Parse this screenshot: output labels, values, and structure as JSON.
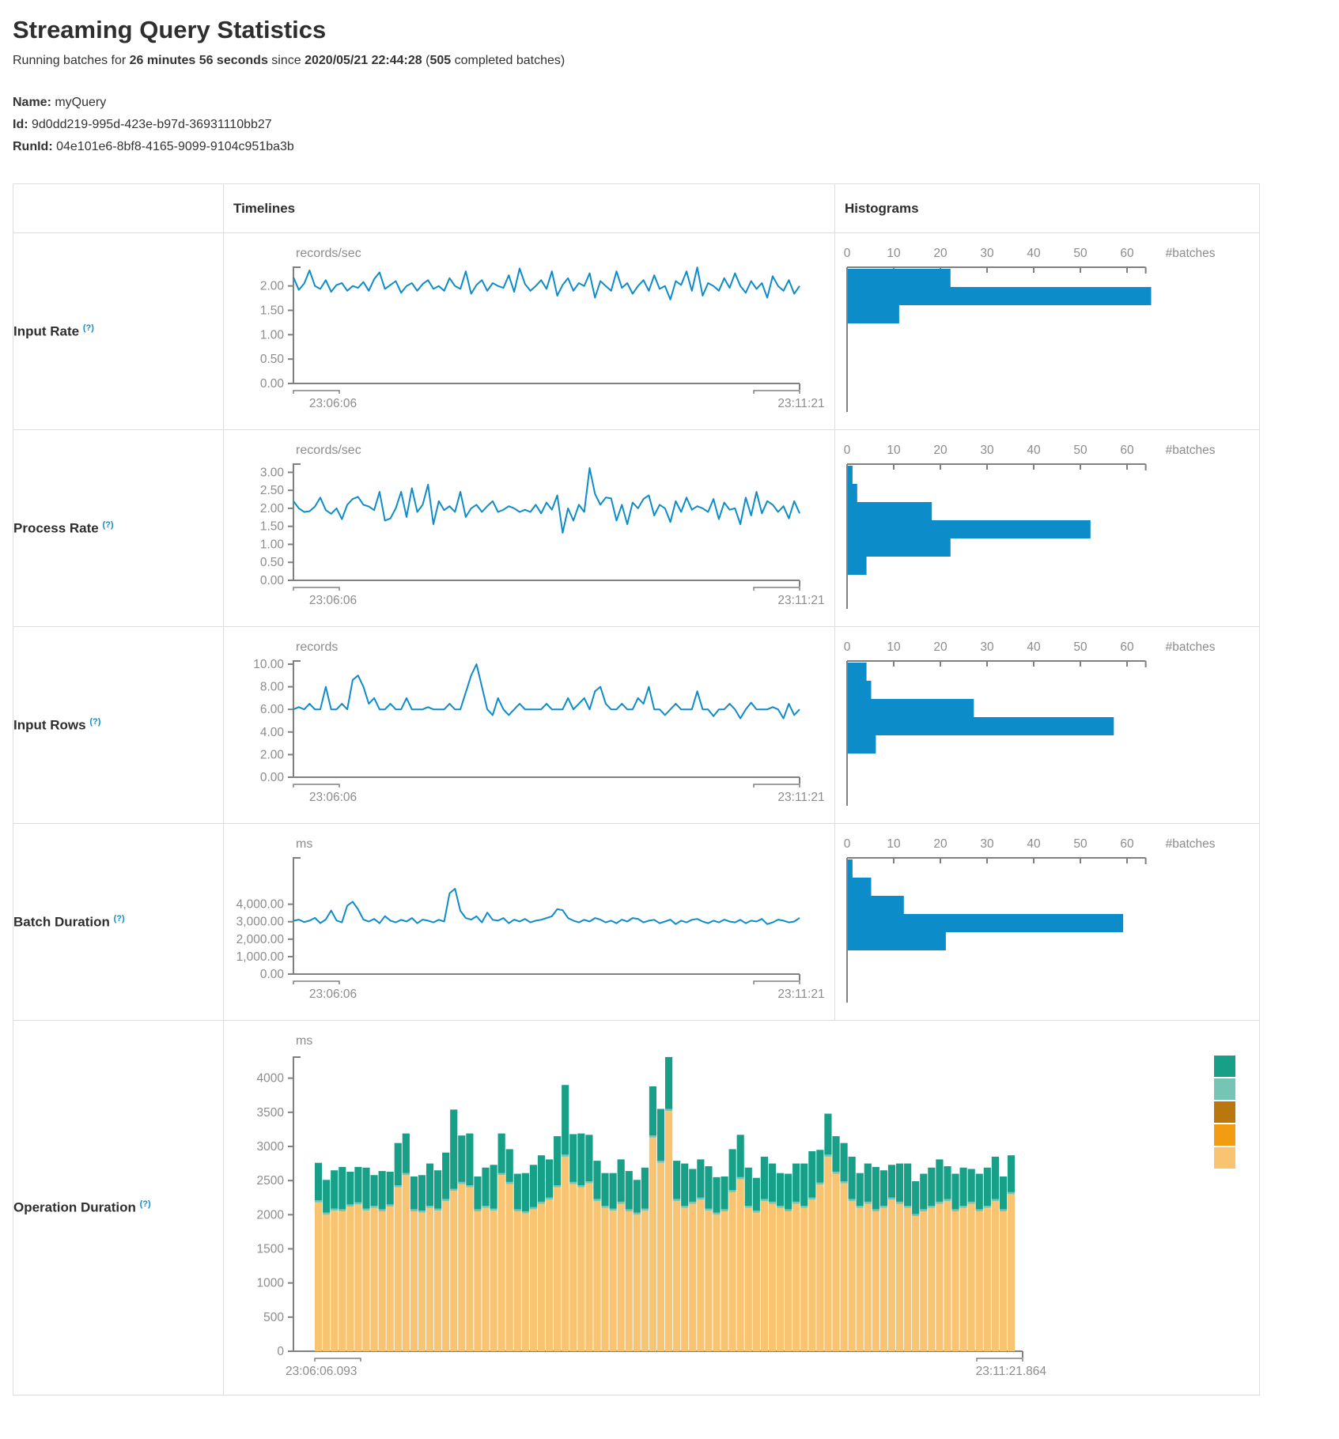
{
  "page": {
    "title": "Streaming Query Statistics",
    "running_prefix": "Running batches for ",
    "running_duration": "26 minutes 56 seconds",
    "running_since": " since ",
    "running_timestamp": "2020/05/21 22:44:28",
    "running_open": " (",
    "running_count": "505",
    "running_suffix": " completed batches)",
    "name_label": "Name:",
    "name_value": " myQuery",
    "id_label": "Id:",
    "id_value": " 9d0dd219-995d-423e-b97d-36931110bb27",
    "runid_label": "RunId:",
    "runid_value": " 04e101e6-8bf8-4165-9099-9104c951ba3b"
  },
  "table": {
    "header_timelines": "Timelines",
    "header_histograms": "Histograms",
    "rows": [
      {
        "label": "Input Rate",
        "help": "(?)"
      },
      {
        "label": "Process Rate",
        "help": "(?)"
      },
      {
        "label": "Input Rows",
        "help": "(?)"
      },
      {
        "label": "Batch Duration",
        "help": "(?)"
      },
      {
        "label": "Operation Duration",
        "help": "(?)"
      }
    ]
  },
  "colors": {
    "blue": "#0d8cca",
    "teal": "#17a087",
    "light_teal": "#76c4b4",
    "ochre": "#b9770e",
    "orange": "#f39c12",
    "tan": "#f8c471",
    "axis": "#808080",
    "tick_text": "#8c8c8c",
    "help": "#0d8cca"
  },
  "chart_data": [
    {
      "id": "input_rate_timeline",
      "type": "line",
      "unit": "records/sec",
      "x_start": "23:06:06",
      "x_end": "23:11:21",
      "ymax": 2.4,
      "grid": false,
      "yticks": [
        {
          "v": 0,
          "t": "0.00"
        },
        {
          "v": 0.5,
          "t": "0.50"
        },
        {
          "v": 1,
          "t": "1.00"
        },
        {
          "v": 1.5,
          "t": "1.50"
        },
        {
          "v": 2,
          "t": "2.00"
        }
      ],
      "values": [
        2.18,
        1.92,
        2.05,
        2.32,
        2.0,
        1.94,
        2.12,
        1.88,
        2.02,
        2.06,
        1.9,
        2.0,
        1.96,
        2.08,
        1.9,
        2.14,
        2.28,
        1.94,
        2.02,
        2.1,
        1.86,
        2.0,
        2.06,
        1.9,
        2.04,
        2.12,
        1.94,
        2.0,
        1.9,
        2.16,
        2.0,
        1.94,
        2.3,
        1.84,
        2.02,
        2.12,
        1.9,
        2.06,
        2.0,
        1.96,
        2.22,
        1.88,
        2.36,
        2.04,
        1.9,
        2.0,
        2.12,
        1.94,
        2.3,
        1.8,
        2.02,
        2.16,
        1.9,
        2.06,
        2.0,
        2.26,
        1.76,
        2.1,
        2.0,
        1.9,
        2.3,
        1.96,
        2.06,
        1.84,
        2.0,
        2.12,
        1.9,
        2.22,
        1.94,
        2.0,
        1.72,
        2.1,
        2.02,
        2.3,
        1.9,
        2.38,
        1.8,
        2.06,
        2.0,
        1.9,
        2.16,
        1.96,
        2.26,
        2.0,
        1.86,
        2.1,
        1.94,
        2.06,
        1.76,
        2.2,
        2.0,
        1.9,
        2.12,
        1.84,
        2.0
      ]
    },
    {
      "id": "input_rate_histogram",
      "type": "hbar",
      "xlabel": "#batches",
      "xticks": [
        0,
        10,
        20,
        30,
        40,
        50,
        60
      ],
      "values": [
        22,
        65,
        11
      ]
    },
    {
      "id": "process_rate_timeline",
      "type": "line",
      "unit": "records/sec",
      "x_start": "23:06:06",
      "x_end": "23:11:21",
      "ymax": 3.25,
      "grid": false,
      "yticks": [
        {
          "v": 0,
          "t": "0.00"
        },
        {
          "v": 0.5,
          "t": "0.50"
        },
        {
          "v": 1,
          "t": "1.00"
        },
        {
          "v": 1.5,
          "t": "1.50"
        },
        {
          "v": 2,
          "t": "2.00"
        },
        {
          "v": 2.5,
          "t": "2.50"
        },
        {
          "v": 3,
          "t": "3.00"
        }
      ],
      "values": [
        2.2,
        2.0,
        1.9,
        1.92,
        2.05,
        2.3,
        1.95,
        1.85,
        2.0,
        1.7,
        2.1,
        2.26,
        2.32,
        2.1,
        2.05,
        1.95,
        2.46,
        1.66,
        1.72,
        2.0,
        2.46,
        1.76,
        2.56,
        1.9,
        2.1,
        2.66,
        1.56,
        2.2,
        1.95,
        2.06,
        1.9,
        2.46,
        1.76,
        2.0,
        2.1,
        1.9,
        2.06,
        2.2,
        1.9,
        1.96,
        2.06,
        2.0,
        1.9,
        1.96,
        1.9,
        2.1,
        1.86,
        2.16,
        1.96,
        2.36,
        1.32,
        2.0,
        1.66,
        2.1,
        1.9,
        3.12,
        2.4,
        2.1,
        2.3,
        2.28,
        1.66,
        2.1,
        1.56,
        2.16,
        2.0,
        2.26,
        2.36,
        1.8,
        2.1,
        2.0,
        1.62,
        2.2,
        1.9,
        2.3,
        1.96,
        2.06,
        2.0,
        1.9,
        2.26,
        1.7,
        2.16,
        1.96,
        2.0,
        1.56,
        2.3,
        1.8,
        2.46,
        1.86,
        2.2,
        2.1,
        1.9,
        2.06,
        1.72,
        2.2,
        1.86
      ]
    },
    {
      "id": "process_rate_histogram",
      "type": "hbar",
      "xlabel": "#batches",
      "xticks": [
        0,
        10,
        20,
        30,
        40,
        50,
        60
      ],
      "values": [
        1,
        2,
        18,
        52,
        22,
        4
      ]
    },
    {
      "id": "input_rows_timeline",
      "type": "line",
      "unit": "records",
      "x_start": "23:06:06",
      "x_end": "23:11:21",
      "ymax": 10.35,
      "grid": false,
      "yticks": [
        {
          "v": 0,
          "t": "0.00"
        },
        {
          "v": 2,
          "t": "2.00"
        },
        {
          "v": 4,
          "t": "4.00"
        },
        {
          "v": 6,
          "t": "6.00"
        },
        {
          "v": 8,
          "t": "8.00"
        },
        {
          "v": 10,
          "t": "10.00"
        }
      ],
      "values": [
        6,
        6.2,
        6,
        6.5,
        6,
        6,
        8,
        6,
        6,
        6.5,
        6,
        8.6,
        9,
        8,
        6.5,
        7,
        6,
        6,
        6.5,
        6,
        6,
        7,
        6,
        6,
        6,
        6.2,
        6,
        6,
        6,
        6.5,
        6,
        6,
        7.5,
        9,
        10,
        8,
        6,
        5.5,
        7,
        6,
        5.5,
        6,
        6.5,
        6,
        6,
        6,
        6,
        6.5,
        6,
        6,
        6,
        7,
        6,
        6.5,
        7,
        6,
        7.6,
        8,
        6.5,
        6,
        6,
        6.5,
        6,
        6,
        7,
        6.5,
        8,
        6,
        6,
        5.5,
        6,
        6.5,
        6,
        6,
        6,
        7.6,
        6,
        6,
        5.4,
        6,
        6,
        6.5,
        6,
        5.2,
        6,
        6.6,
        6,
        6,
        6,
        6.2,
        6,
        5.2,
        6.5,
        5.5,
        6
      ]
    },
    {
      "id": "input_rows_histogram",
      "type": "hbar",
      "xlabel": "#batches",
      "xticks": [
        0,
        10,
        20,
        30,
        40,
        50,
        60
      ],
      "values": [
        4,
        5,
        27,
        57,
        6
      ]
    },
    {
      "id": "batch_duration_timeline",
      "type": "line",
      "unit": "ms",
      "x_start": "23:06:06",
      "x_end": "23:11:21",
      "ymax": 6700,
      "grid": false,
      "yticks": [
        {
          "v": 0,
          "t": "0.00"
        },
        {
          "v": 1000,
          "t": "1,000.00"
        },
        {
          "v": 2000,
          "t": "2,000.00"
        },
        {
          "v": 3000,
          "t": "3,000.00"
        },
        {
          "v": 4000,
          "t": "4,000.00"
        }
      ],
      "values": [
        3050,
        3120,
        2980,
        3060,
        3220,
        2920,
        3130,
        3640,
        3070,
        2960,
        3920,
        4140,
        3710,
        3120,
        3010,
        3160,
        2910,
        3320,
        3060,
        2960,
        3110,
        3010,
        3210,
        2910,
        3120,
        3060,
        2960,
        3110,
        3010,
        4620,
        4890,
        3620,
        3210,
        3120,
        3310,
        2960,
        3520,
        3110,
        3060,
        3210,
        2910,
        3120,
        3010,
        3160,
        2960,
        3060,
        3110,
        3210,
        3310,
        3720,
        3660,
        3210,
        3060,
        2960,
        3110,
        3010,
        3210,
        3120,
        2960,
        3060,
        2910,
        3120,
        3010,
        3210,
        3160,
        2960,
        3060,
        3110,
        2910,
        3010,
        3120,
        2860,
        3060,
        2960,
        3110,
        3160,
        3010,
        2910,
        3060,
        2960,
        3120,
        3010,
        2960,
        3110,
        2910,
        3060,
        3010,
        3160,
        2860,
        2960,
        3120,
        3060,
        2960,
        3010,
        3220
      ]
    },
    {
      "id": "batch_duration_histogram",
      "type": "hbar",
      "xlabel": "#batches",
      "xticks": [
        0,
        10,
        20,
        30,
        40,
        50,
        60
      ],
      "values": [
        1,
        5,
        12,
        59,
        21
      ]
    },
    {
      "id": "operation_duration",
      "type": "stacked",
      "unit": "ms",
      "x_start": "23:06:06.093",
      "x_end": "23:11:21.864",
      "ymax": 4320,
      "grid": false,
      "yticks": [
        {
          "v": 0,
          "t": "0"
        },
        {
          "v": 500,
          "t": "500"
        },
        {
          "v": 1000,
          "t": "1000"
        },
        {
          "v": 1500,
          "t": "1500"
        },
        {
          "v": 2000,
          "t": "2000"
        },
        {
          "v": 2500,
          "t": "2500"
        },
        {
          "v": 3000,
          "t": "3000"
        },
        {
          "v": 3500,
          "t": "3500"
        },
        {
          "v": 4000,
          "t": "4000"
        }
      ],
      "legend_colors": [
        "#17a087",
        "#76c4b4",
        "#b9770e",
        "#f39c12",
        "#f8c471"
      ],
      "series": [
        {
          "name": "stack-bottom",
          "color": "#f8c471",
          "values": [
            2180,
            2000,
            2060,
            2050,
            2120,
            2150,
            2060,
            2100,
            2050,
            2120,
            2400,
            2580,
            2050,
            2030,
            2100,
            2060,
            2200,
            2350,
            2450,
            2400,
            2050,
            2100,
            2060,
            2580,
            2450,
            2050,
            2020,
            2080,
            2160,
            2220,
            2400,
            2850,
            2450,
            2400,
            2460,
            2200,
            2100,
            2060,
            2160,
            2050,
            2000,
            2060,
            3130,
            2760,
            3520,
            2200,
            2100,
            2160,
            2220,
            2060,
            2000,
            2050,
            2330,
            2520,
            2100,
            2030,
            2200,
            2160,
            2100,
            2050,
            2160,
            2100,
            2220,
            2440,
            2850,
            2600,
            2460,
            2200,
            2100,
            2160,
            2050,
            2100,
            2220,
            2160,
            2100,
            1980,
            2050,
            2100,
            2160,
            2200,
            2050,
            2100,
            2160,
            2050,
            2100,
            2200,
            2050,
            2300
          ]
        },
        {
          "name": "stack-middle",
          "color": "#76c4b4",
          "const": 30
        },
        {
          "name": "stack-top",
          "color": "#17a087",
          "values": [
            550,
            480,
            560,
            620,
            480,
            520,
            600,
            450,
            560,
            480,
            620,
            580,
            480,
            520,
            620,
            560,
            680,
            1160,
            680,
            760,
            480,
            560,
            640,
            580,
            480,
            520,
            560,
            620,
            680,
            560,
            720,
            1020,
            700,
            760,
            680,
            560,
            480,
            520,
            620,
            560,
            480,
            600,
            720,
            760,
            760,
            560,
            620,
            480,
            560,
            620,
            520,
            480,
            600,
            620,
            560,
            480,
            620,
            560,
            480,
            520,
            560,
            620,
            680,
            480,
            600,
            520,
            560,
            620,
            480,
            560,
            620,
            520,
            480,
            560,
            620,
            480,
            520,
            560,
            620,
            480,
            520,
            560,
            480,
            520,
            560,
            620,
            480,
            540
          ]
        }
      ]
    }
  ]
}
